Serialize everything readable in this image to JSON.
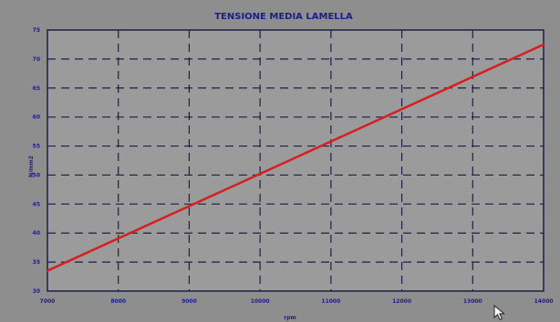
{
  "chart_data": {
    "type": "line",
    "title": "TENSIONE MEDIA LAMELLA",
    "xlabel": "rpm",
    "ylabel": "N/mm2",
    "xlim": [
      7000,
      14000
    ],
    "ylim": [
      30,
      75
    ],
    "xticks": [
      7000,
      8000,
      9000,
      10000,
      11000,
      12000,
      13000,
      14000
    ],
    "yticks": [
      30,
      35,
      40,
      45,
      50,
      55,
      60,
      65,
      70,
      75
    ],
    "grid": true,
    "series": [
      {
        "x": [
          7000,
          14000
        ],
        "y": [
          33.5,
          72.5
        ]
      }
    ]
  },
  "colors": {
    "background": "#8e8e8e",
    "plot_background": "#9b9b9b",
    "grid": "#1d1d4a",
    "text": "#1c1c8a",
    "line": "#d52020"
  }
}
